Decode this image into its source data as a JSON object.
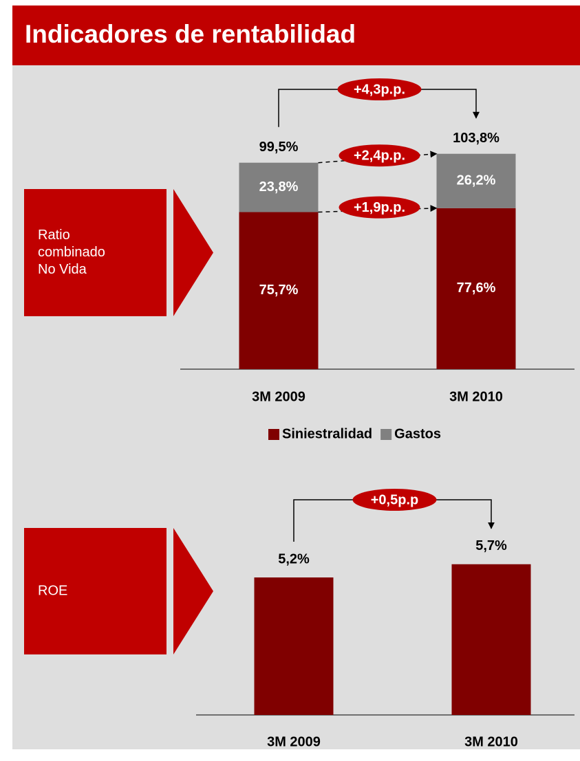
{
  "title": "Indicadores de rentabilidad",
  "chart_data": [
    {
      "type": "stacked_bar",
      "panel_label": [
        "Ratio",
        "combinado",
        "No Vida"
      ],
      "categories": [
        "3M 2009",
        "3M 2010"
      ],
      "series": [
        {
          "name": "Siniestralidad",
          "color": "#800000",
          "values": [
            75.7,
            77.6
          ],
          "value_labels": [
            "75,7%",
            "77,6%"
          ]
        },
        {
          "name": "Gastos",
          "color": "#808080",
          "values": [
            23.8,
            26.2
          ],
          "value_labels": [
            "23,8%",
            "26,2%"
          ]
        }
      ],
      "totals": [
        99.5,
        103.8
      ],
      "total_labels": [
        "99,5%",
        "103,8%"
      ],
      "annotations": [
        "+4,3p.p.",
        "+2,4p.p.",
        "+1,9p.p."
      ],
      "ylim": [
        0,
        110
      ],
      "legend": "bottom"
    },
    {
      "type": "bar",
      "panel_label": [
        "ROE"
      ],
      "categories": [
        "3M 2009",
        "3M 2010"
      ],
      "values": [
        5.2,
        5.7
      ],
      "value_labels": [
        "5,2%",
        "5,7%"
      ],
      "color": "#800000",
      "annotations": [
        "+0,5p.p"
      ],
      "ylim": [
        0,
        6.5
      ]
    }
  ]
}
